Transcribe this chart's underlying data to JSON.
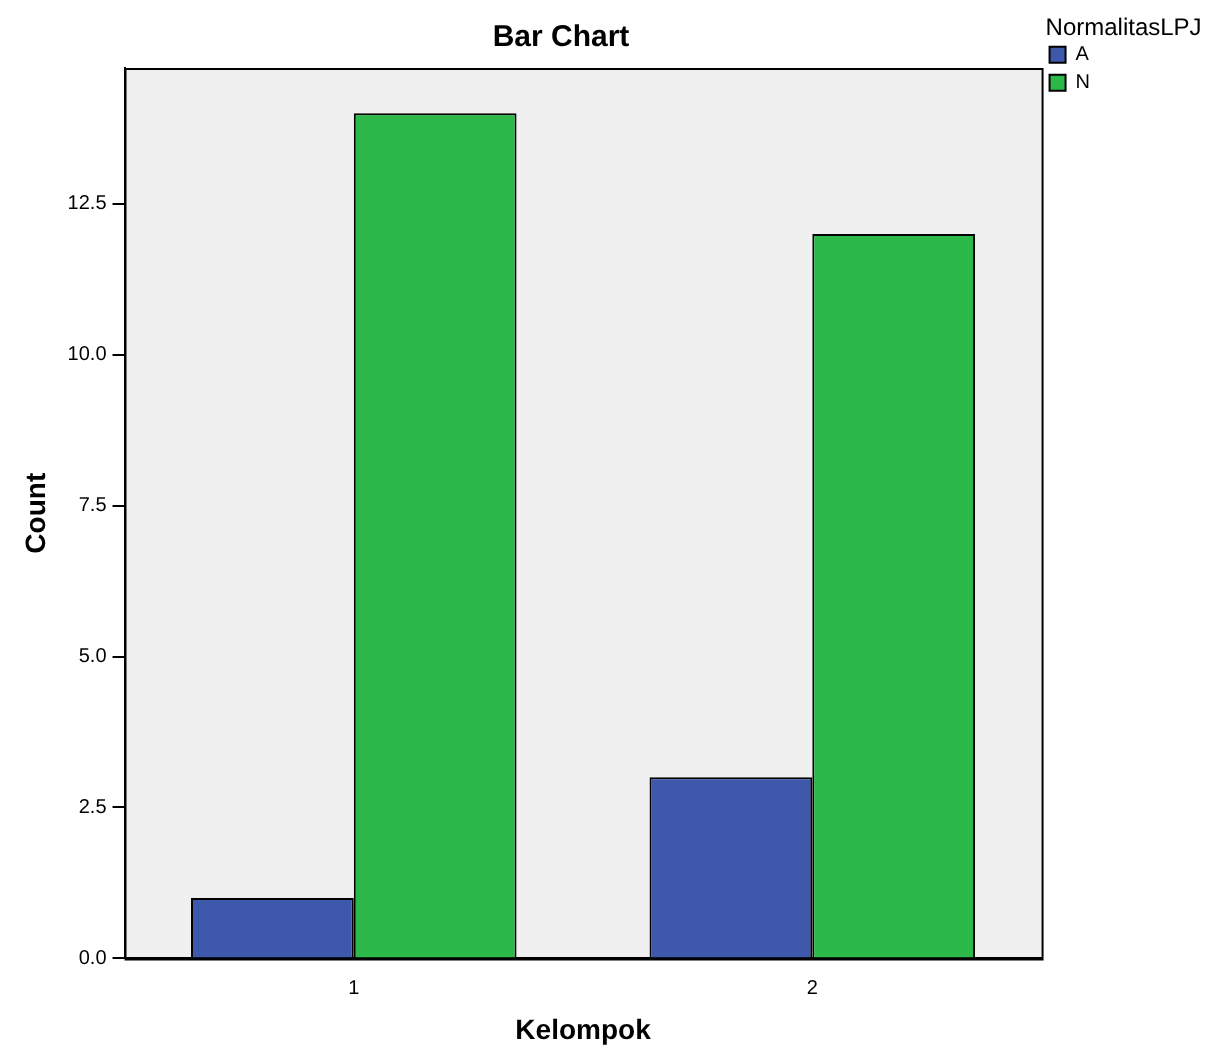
{
  "chart_data": {
    "type": "bar",
    "title": "Bar Chart",
    "xlabel": "Kelompok",
    "ylabel": "Count",
    "legend_title": "NormalitasLPJ",
    "legend": "top right",
    "grid": false,
    "categories": [
      "1",
      "2"
    ],
    "series": [
      {
        "name": "A",
        "color": "#3e58ac",
        "values": [
          1,
          3
        ]
      },
      {
        "name": "N",
        "color": "#2db84a",
        "values": [
          14,
          12
        ]
      }
    ],
    "ylim": [
      0,
      14.75
    ],
    "yticks": [
      {
        "value": 0,
        "label": "0.0"
      },
      {
        "value": 2.5,
        "label": "2.5"
      },
      {
        "value": 5,
        "label": "5.0"
      },
      {
        "value": 7.5,
        "label": "7.5"
      },
      {
        "value": 10,
        "label": "10.0"
      },
      {
        "value": 12.5,
        "label": "12.5"
      }
    ]
  }
}
